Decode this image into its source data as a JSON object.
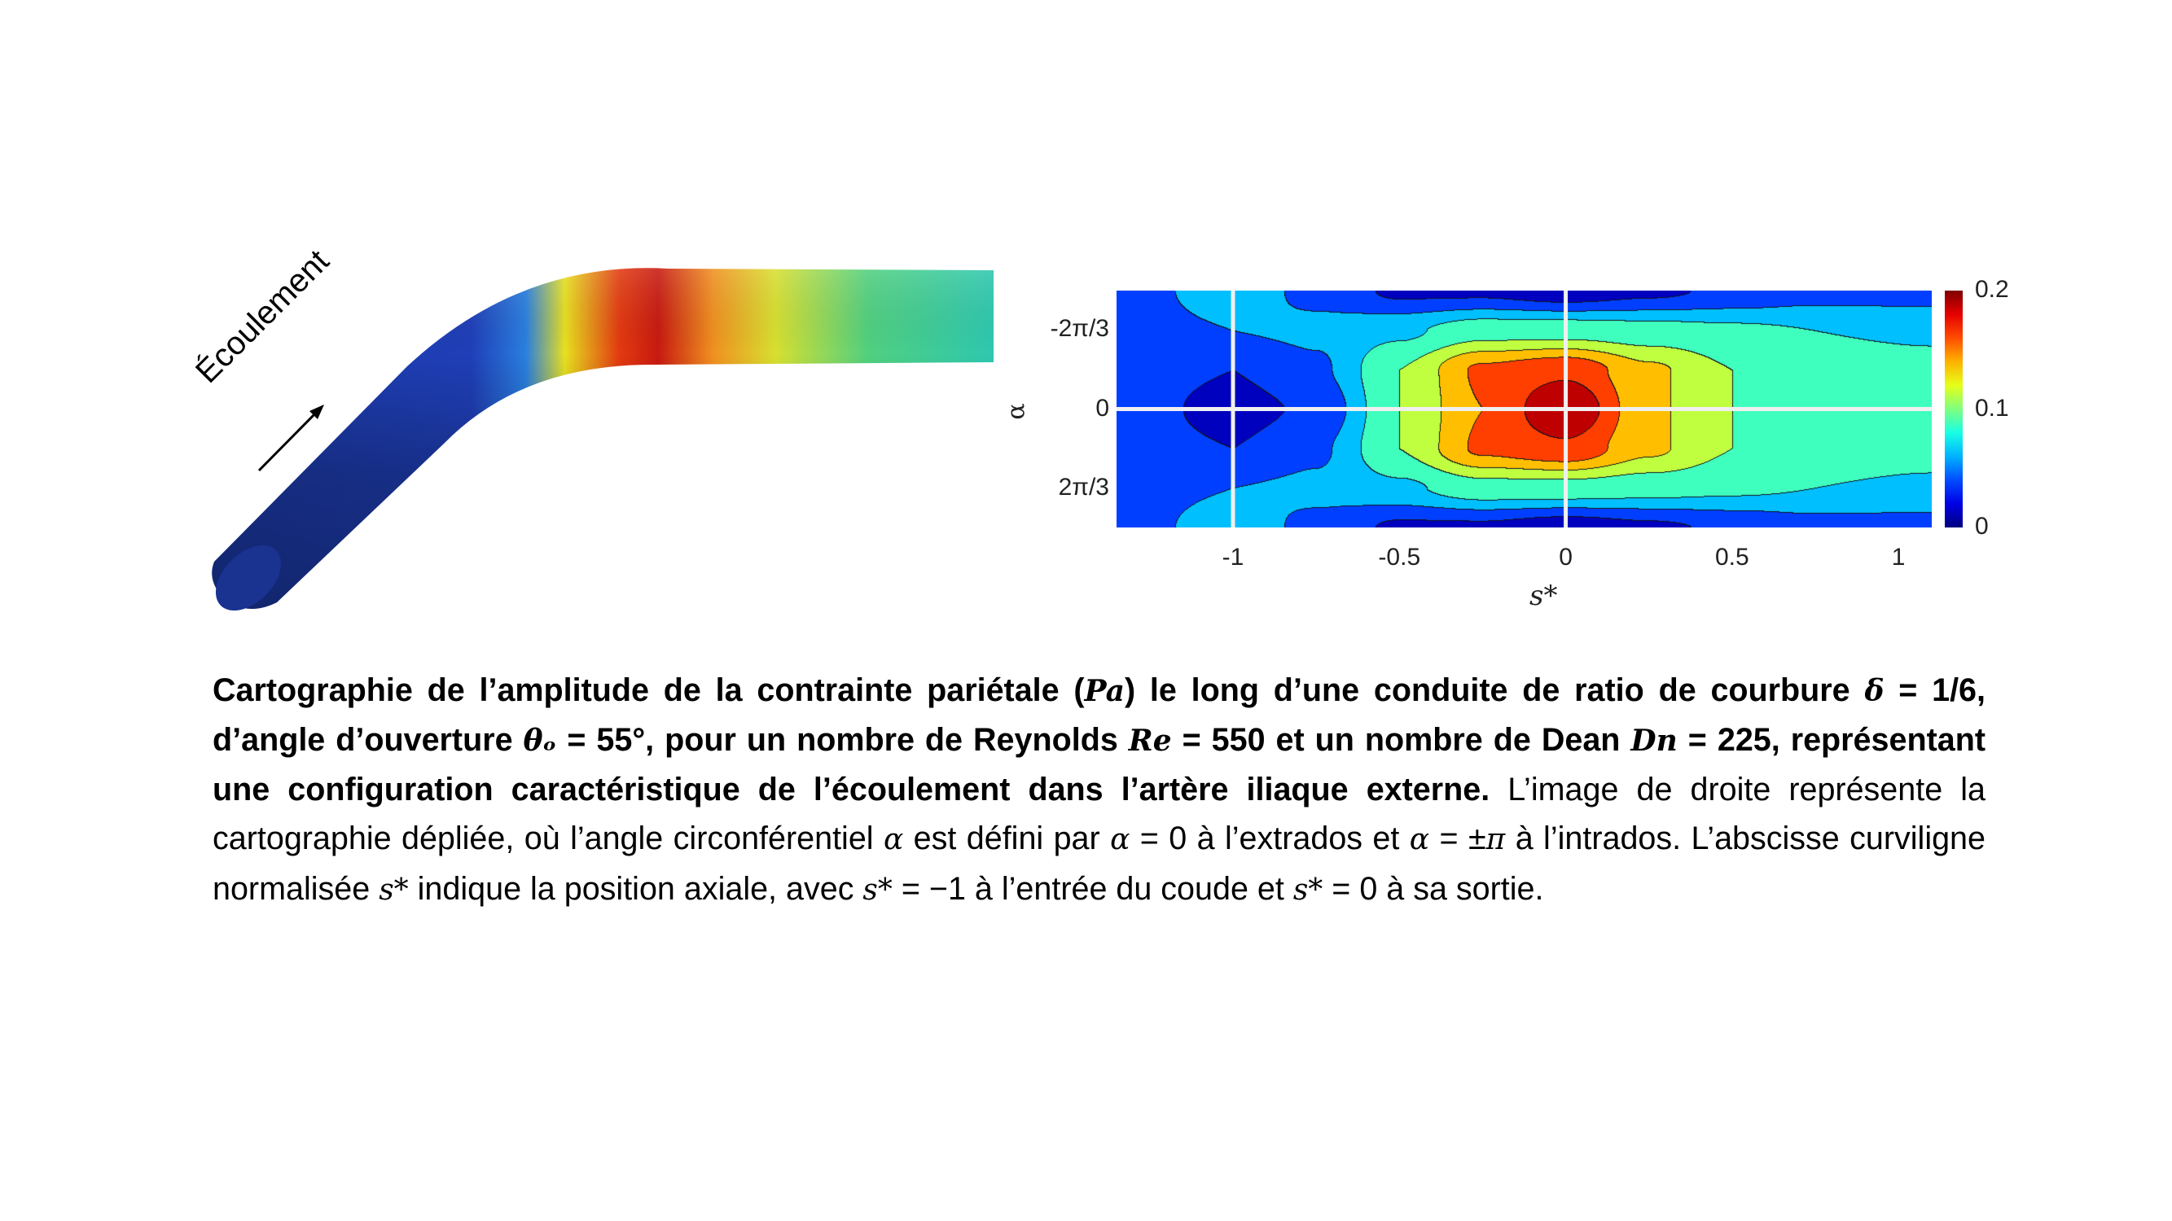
{
  "figure_left": {
    "flow_label": "Écoulement",
    "colors": {
      "low": "#1a2fb0",
      "mid": "#f5e619",
      "high": "#c40c0c",
      "outlet": "#2ec8b0"
    }
  },
  "chart_data": {
    "type": "heatmap",
    "xlabel": "s*",
    "ylabel": "α",
    "xlim": [
      -1.35,
      1.1
    ],
    "ylim_label": [
      "-π",
      "π"
    ],
    "x_ticks": [
      -1,
      -0.5,
      0,
      0.5,
      1
    ],
    "x_tick_labels": [
      "-1",
      "-0.5",
      "0",
      "0.5",
      "1"
    ],
    "y_tick_labels": [
      "-2π/3",
      "0",
      "2π/3"
    ],
    "y_ticks_units_of_pi": [
      -0.6667,
      0,
      0.6667
    ],
    "colorbar": {
      "min": 0,
      "max": 0.2,
      "tick_labels": [
        "0.2",
        "0.1",
        "0"
      ],
      "colormap": "jet"
    },
    "contour_step": 0.025,
    "reference_lines": {
      "s": [
        -1,
        0
      ],
      "alpha": [
        0
      ]
    },
    "grid_s": [
      -1.35,
      -1,
      -0.75,
      -0.5,
      -0.25,
      0,
      0.25,
      0.5,
      0.75,
      1.1
    ],
    "grid_alpha_units_of_pi": [
      -1,
      -0.6667,
      -0.3333,
      0,
      0.3333,
      0.6667,
      1
    ],
    "values": [
      [
        0.04,
        0.06,
        0.045,
        0.02,
        0.02,
        0.01,
        0.02,
        0.03,
        0.04,
        0.04
      ],
      [
        0.04,
        0.05,
        0.055,
        0.07,
        0.09,
        0.09,
        0.085,
        0.08,
        0.075,
        0.07
      ],
      [
        0.04,
        0.025,
        0.045,
        0.1,
        0.155,
        0.17,
        0.13,
        0.1,
        0.09,
        0.085
      ],
      [
        0.04,
        0.015,
        0.03,
        0.1,
        0.15,
        0.2,
        0.13,
        0.1,
        0.08,
        0.08
      ],
      [
        0.04,
        0.025,
        0.045,
        0.1,
        0.155,
        0.17,
        0.13,
        0.1,
        0.09,
        0.085
      ],
      [
        0.04,
        0.05,
        0.055,
        0.07,
        0.09,
        0.09,
        0.085,
        0.08,
        0.075,
        0.07
      ],
      [
        0.04,
        0.06,
        0.045,
        0.02,
        0.02,
        0.01,
        0.02,
        0.03,
        0.04,
        0.04
      ]
    ]
  },
  "caption": {
    "bold_1": "Cartographie de l’amplitude de la contrainte pariétale (",
    "bold_pa": "Pa",
    "bold_2": ") le long d’une conduite de ratio de courbure ",
    "bold_delta": "δ",
    "bold_3": " = 1/6, d’angle d’ouverture ",
    "bold_theta": "θₒ",
    "bold_4": " = 55°, pour un nombre de Reynolds ",
    "bold_re": "Re",
    "bold_5": " = 550 et un nombre de Dean ",
    "bold_dn": "Dn",
    "bold_6": " = 225, représentant une configuration caractéristique de l’écoulement dans l’artère iliaque externe.",
    "normal_1": " L’image de droite représente la cartographie dépliée, où l’angle circonférentiel ",
    "alpha_1": "α",
    "normal_2": " est défini par ",
    "alpha_2": "α",
    "normal_3": " = 0 à l’extrados et ",
    "alpha_3": "α",
    "normal_4": " = ±",
    "pi": "π",
    "normal_5": " à l’intrados. L’abscisse curviligne normalisée ",
    "s_1": "s*",
    "normal_6": " indique la position axiale, avec ",
    "s_2": "s*",
    "normal_7": " = −1 à l’entrée du coude et ",
    "s_3": "s*",
    "normal_8": " = 0 à sa sortie."
  }
}
